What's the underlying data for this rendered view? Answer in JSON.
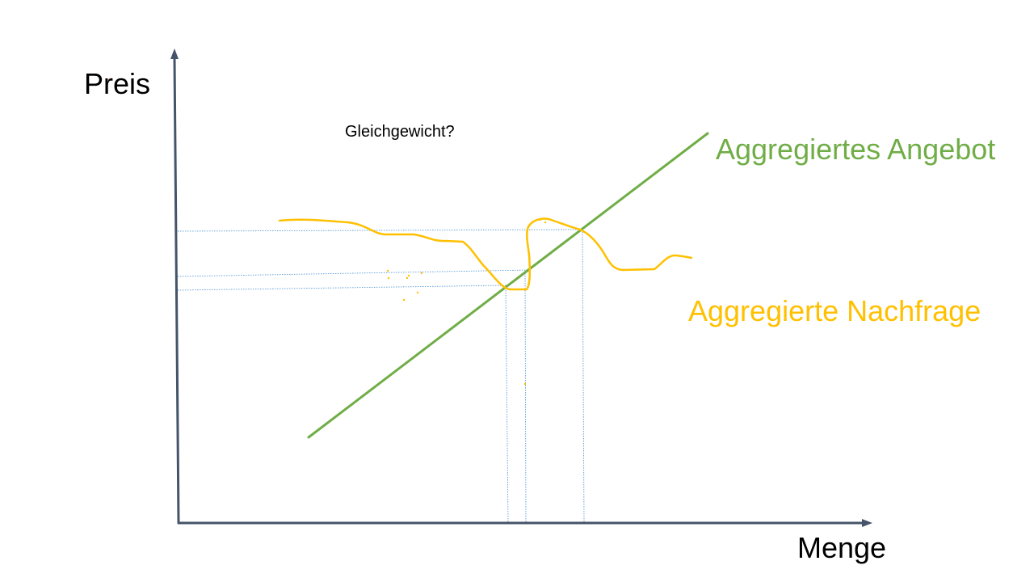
{
  "diagram": {
    "y_axis_label": "Preis",
    "x_axis_label": "Menge",
    "question": "Gleichgewicht?",
    "supply_label": "Aggregiertes Angebot",
    "demand_label": "Aggregierte Nachfrage"
  },
  "colors": {
    "axis": "#44546a",
    "text": "#000000",
    "supply": "#70ad47",
    "demand": "#ffc000",
    "guide": "#5b9bd5",
    "marks": "#ed7d31"
  },
  "icons": {
    "axis_arrow": "arrow-head-icon"
  }
}
